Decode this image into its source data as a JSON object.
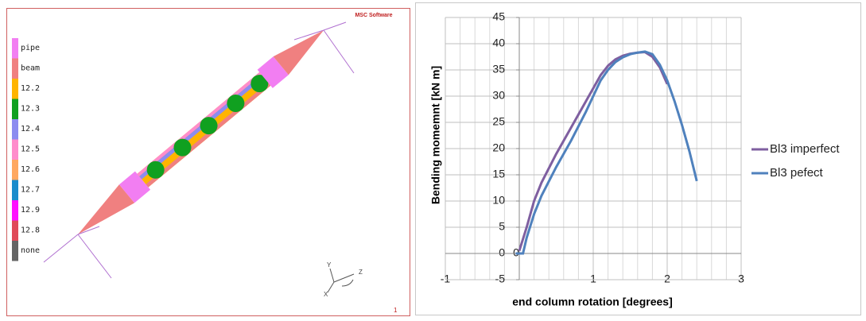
{
  "model_view": {
    "logo": "MSC Software",
    "legend": [
      {
        "label": "pipe",
        "color": "#f27ef2"
      },
      {
        "label": "beam",
        "color": "#f08080"
      },
      {
        "label": "12.2",
        "color": "#ffb400"
      },
      {
        "label": "12.3",
        "color": "#10a020"
      },
      {
        "label": "12.4",
        "color": "#8c8cf0"
      },
      {
        "label": "12.5",
        "color": "#ff8ccc"
      },
      {
        "label": "12.6",
        "color": "#ffa860"
      },
      {
        "label": "12.7",
        "color": "#1a8ccc"
      },
      {
        "label": "12.9",
        "color": "#ff10ff"
      },
      {
        "label": "12.8",
        "color": "#e04a58"
      },
      {
        "label": "none",
        "color": "#646464"
      }
    ],
    "axes": [
      "Y",
      "Z",
      "X"
    ],
    "page_number": "1"
  },
  "chart_data": {
    "type": "line",
    "xlabel": "end column rotation [degrees]",
    "ylabel": "Bending momemnt [kN m]",
    "xlim": [
      -1,
      3
    ],
    "ylim": [
      -5,
      45
    ],
    "xticks": [
      -1,
      0,
      1,
      2,
      3
    ],
    "yticks": [
      -5,
      0,
      5,
      10,
      15,
      20,
      25,
      30,
      35,
      40,
      45
    ],
    "grid": true,
    "legend": "right",
    "series": [
      {
        "name": "Bl3 imperfect",
        "color": "#7f5fa0",
        "x": [
          0,
          0.1,
          0.2,
          0.3,
          0.5,
          0.7,
          0.9,
          1.0,
          1.1,
          1.2,
          1.3,
          1.4,
          1.5,
          1.6,
          1.7,
          1.8,
          1.9,
          2.0
        ],
        "values": [
          0.5,
          5,
          10,
          13.5,
          19,
          24,
          29,
          31.5,
          34,
          35.8,
          37,
          37.7,
          38.1,
          38.3,
          38.4,
          37.5,
          35.5,
          32.3
        ]
      },
      {
        "name": "Bl3 pefect",
        "color": "#4f81bd",
        "x": [
          -0.05,
          0.05,
          0.1,
          0.2,
          0.3,
          0.5,
          0.7,
          0.9,
          1.0,
          1.1,
          1.2,
          1.3,
          1.4,
          1.5,
          1.6,
          1.7,
          1.8,
          1.9,
          2.0,
          2.1,
          2.2,
          2.3,
          2.4
        ],
        "values": [
          0,
          0,
          3,
          7.5,
          11,
          16.5,
          21.5,
          27,
          30,
          33,
          35,
          36.5,
          37.4,
          38,
          38.3,
          38.5,
          38,
          36,
          33,
          29,
          24.5,
          19.5,
          13.8
        ]
      }
    ]
  }
}
